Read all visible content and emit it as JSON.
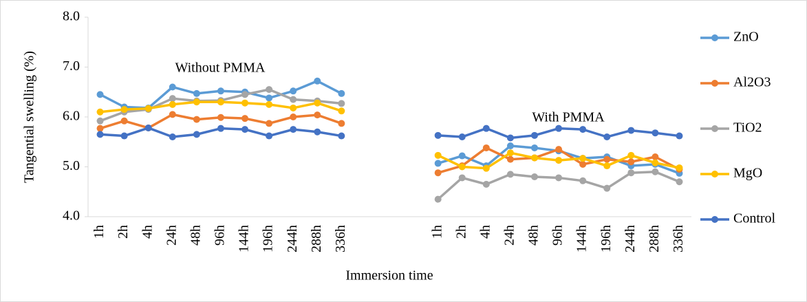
{
  "chart_data": {
    "type": "line",
    "y_label": "Tangential swelling (%)",
    "x_label": "Immersion time",
    "annotations": [
      "Without PMMA",
      "With PMMA"
    ],
    "categories": [
      "1h",
      "2h",
      "4h",
      "24h",
      "48h",
      "96h",
      "144h",
      "196h",
      "244h",
      "288h",
      "336h",
      null,
      null,
      null,
      "1h",
      "2h",
      "4h",
      "24h",
      "48h",
      "96h",
      "144h",
      "196h",
      "244h",
      "288h",
      "336h"
    ],
    "ylim": [
      4,
      8
    ],
    "yticks": [
      {
        "value": 4,
        "label": "4.0"
      },
      {
        "value": 5,
        "label": "5.0"
      },
      {
        "value": 6,
        "label": "6.0"
      },
      {
        "value": 7,
        "label": "7.0"
      },
      {
        "value": 8,
        "label": "8.0"
      }
    ],
    "series": [
      {
        "name": "ZnO",
        "color": "#5b9bd5",
        "values": [
          6.45,
          6.2,
          6.18,
          6.6,
          6.47,
          6.52,
          6.5,
          6.38,
          6.52,
          6.72,
          6.47,
          null,
          null,
          null,
          5.07,
          5.22,
          5.02,
          5.42,
          5.38,
          5.32,
          5.17,
          5.2,
          5.02,
          5.05,
          4.87
        ]
      },
      {
        "name": "Al2O3",
        "color": "#ed7d31",
        "values": [
          5.77,
          5.92,
          5.78,
          6.05,
          5.95,
          5.99,
          5.97,
          5.87,
          6.0,
          6.04,
          5.87,
          null,
          null,
          null,
          4.88,
          5.02,
          5.38,
          5.15,
          5.18,
          5.35,
          5.05,
          5.15,
          5.1,
          5.2,
          4.95
        ]
      },
      {
        "name": "TiO2",
        "color": "#a5a5a5",
        "values": [
          5.92,
          6.1,
          6.15,
          6.37,
          6.32,
          6.33,
          6.45,
          6.55,
          6.35,
          6.32,
          6.27,
          null,
          null,
          null,
          4.35,
          4.78,
          4.65,
          4.85,
          4.8,
          4.78,
          4.72,
          4.57,
          4.88,
          4.9,
          4.7
        ]
      },
      {
        "name": "MgO",
        "color": "#ffc000",
        "values": [
          6.1,
          6.15,
          6.17,
          6.25,
          6.3,
          6.3,
          6.28,
          6.25,
          6.18,
          6.28,
          6.12,
          null,
          null,
          null,
          5.23,
          5.0,
          4.97,
          5.28,
          5.18,
          5.13,
          5.17,
          5.02,
          5.23,
          5.08,
          4.98
        ]
      },
      {
        "name": "Control",
        "color": "#4472c4",
        "values": [
          5.65,
          5.62,
          5.78,
          5.6,
          5.65,
          5.77,
          5.75,
          5.62,
          5.75,
          5.7,
          5.62,
          null,
          null,
          null,
          5.63,
          5.6,
          5.77,
          5.58,
          5.63,
          5.77,
          5.75,
          5.6,
          5.73,
          5.68,
          5.62
        ]
      }
    ],
    "legend": "right"
  }
}
